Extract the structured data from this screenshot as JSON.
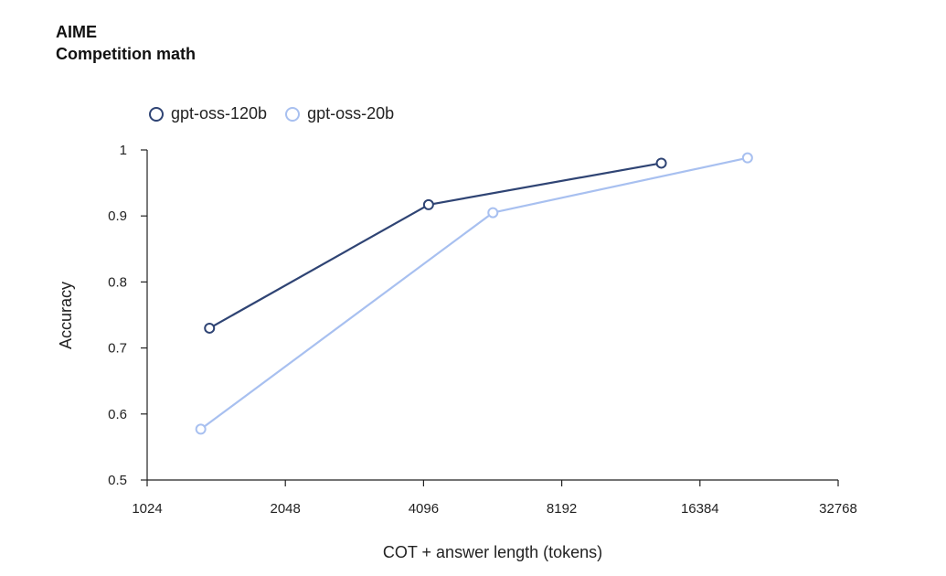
{
  "chart_data": {
    "type": "line",
    "title": "AIME",
    "subtitle": "Competition math",
    "xlabel": "COT + answer length (tokens)",
    "ylabel": "Accuracy",
    "xscale": "log2",
    "xlim": [
      1024,
      32768
    ],
    "ylim": [
      0.5,
      1.0
    ],
    "x_ticks": [
      1024,
      2048,
      4096,
      8192,
      16384,
      32768
    ],
    "x_tick_labels": [
      "1024",
      "2048",
      "4096",
      "8192",
      "16384",
      "32768"
    ],
    "y_ticks": [
      0.5,
      0.6,
      0.7,
      0.8,
      0.9,
      1.0
    ],
    "y_tick_labels": [
      "0.5",
      "0.6",
      "0.7",
      "0.8",
      "0.9",
      "1"
    ],
    "grid": false,
    "legend_position": "top-left",
    "series": [
      {
        "name": "gpt-oss-120b",
        "color": "#2f4474",
        "points": [
          {
            "x": 1400,
            "y": 0.73
          },
          {
            "x": 4200,
            "y": 0.917
          },
          {
            "x": 13500,
            "y": 0.98
          }
        ]
      },
      {
        "name": "gpt-oss-20b",
        "color": "#a8c0f0",
        "points": [
          {
            "x": 1340,
            "y": 0.577
          },
          {
            "x": 5800,
            "y": 0.905
          },
          {
            "x": 20800,
            "y": 0.988
          }
        ]
      }
    ]
  }
}
